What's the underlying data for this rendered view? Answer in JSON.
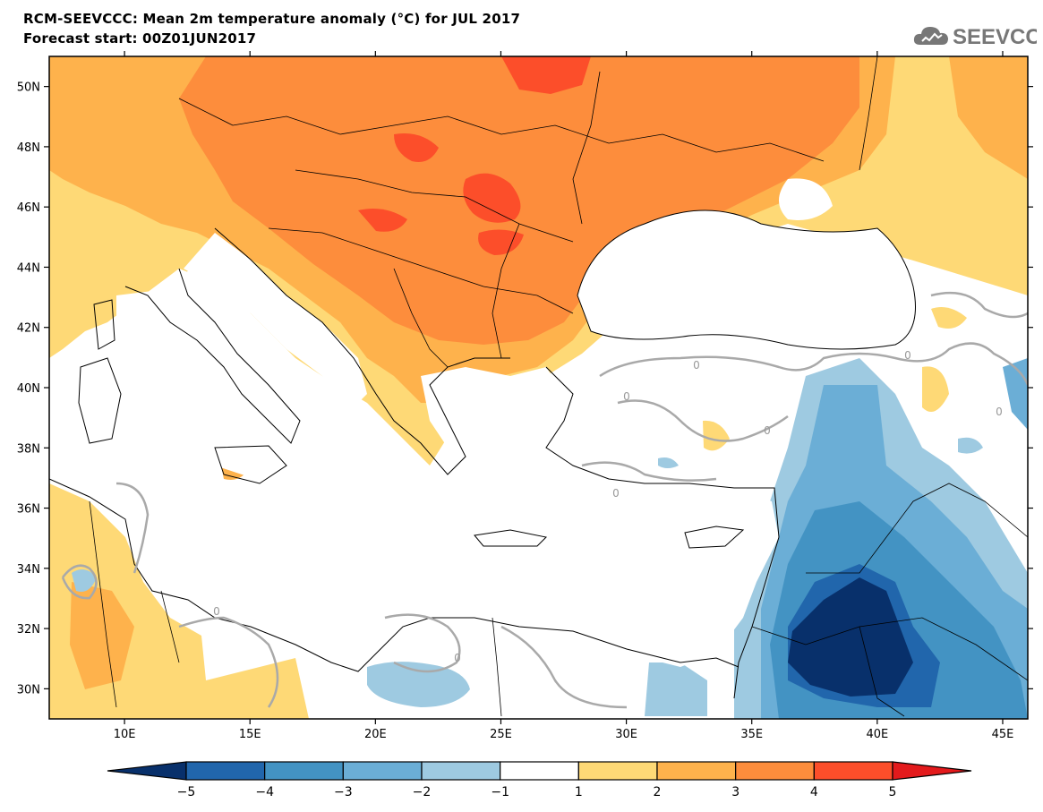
{
  "header": {
    "title": "RCM-SEEVCCC: Mean 2m temperature anomaly (°C) for JUL 2017",
    "subtitle": "Forecast start: 00Z01JUN2017",
    "logo_text": "SEEVCCC"
  },
  "map": {
    "lon_labels": [
      "10E",
      "15E",
      "20E",
      "25E",
      "30E",
      "35E",
      "40E",
      "45E"
    ],
    "lat_labels": [
      "50N",
      "48N",
      "46N",
      "44N",
      "42N",
      "40N",
      "38N",
      "36N",
      "34N",
      "32N",
      "30N"
    ],
    "contour_labels": [
      "0",
      "0",
      "0",
      "0",
      "0",
      "0",
      "0",
      "0"
    ]
  },
  "colorbar": {
    "labels": [
      "−5",
      "−4",
      "−3",
      "−2",
      "−1",
      "1",
      "2",
      "3",
      "4",
      "5"
    ],
    "colors": [
      "#08306b",
      "#2166ac",
      "#4393c3",
      "#6baed6",
      "#9ecae1",
      "#ffffff",
      "#fed976",
      "#feb24c",
      "#fd8d3c",
      "#fc4e2a",
      "#e31a1c"
    ]
  },
  "colors": {
    "contour_zero": "#a9a9a9",
    "coast": "#000000"
  }
}
